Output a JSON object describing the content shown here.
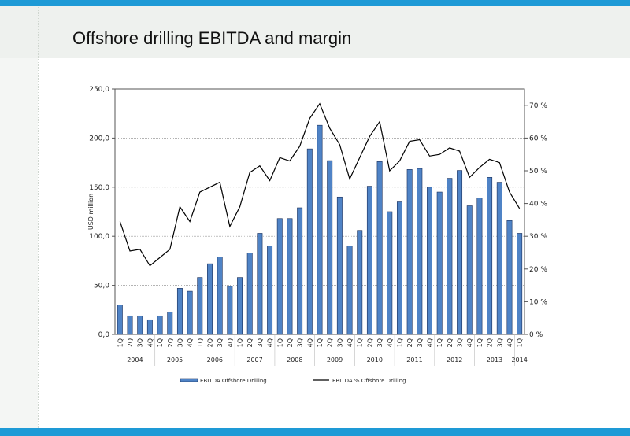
{
  "slide": {
    "title": "Offshore drilling EBITDA and margin",
    "colors": {
      "accent_band": "#1e9ad6",
      "bar_fill": "#4f83c6",
      "bar_stroke": "#1a2f5a",
      "line": "#000000"
    }
  },
  "chart_data": {
    "type": "bar",
    "categories": [
      "1Q",
      "2Q",
      "3Q",
      "4Q",
      "1Q",
      "2Q",
      "3Q",
      "4Q",
      "1Q",
      "2Q",
      "3Q",
      "4Q",
      "1Q",
      "2Q",
      "3Q",
      "4Q",
      "1Q",
      "2Q",
      "3Q",
      "4Q",
      "1Q",
      "2Q",
      "3Q",
      "4Q",
      "1Q",
      "2Q",
      "3Q",
      "4Q",
      "1Q",
      "2Q",
      "3Q",
      "4Q",
      "1Q",
      "2Q",
      "3Q",
      "4Q",
      "1Q",
      "2Q",
      "3Q",
      "4Q",
      "1Q"
    ],
    "years": [
      {
        "label": "2004",
        "start": 0,
        "count": 4
      },
      {
        "label": "2005",
        "start": 4,
        "count": 4
      },
      {
        "label": "2006",
        "start": 8,
        "count": 4
      },
      {
        "label": "2007",
        "start": 12,
        "count": 4
      },
      {
        "label": "2008",
        "start": 16,
        "count": 4
      },
      {
        "label": "2009",
        "start": 20,
        "count": 4
      },
      {
        "label": "2010",
        "start": 24,
        "count": 4
      },
      {
        "label": "2011",
        "start": 28,
        "count": 4
      },
      {
        "label": "2012",
        "start": 32,
        "count": 4
      },
      {
        "label": "2013",
        "start": 36,
        "count": 4
      },
      {
        "label": "2014",
        "start": 40,
        "count": 1
      }
    ],
    "series": [
      {
        "name": "EBITDA Offshore Drilling",
        "kind": "bar",
        "axis": "left",
        "values": [
          30,
          19,
          19,
          15,
          19,
          23,
          47,
          44,
          58,
          72,
          79,
          49,
          58,
          83,
          103,
          90,
          118,
          118,
          129,
          189,
          213,
          177,
          140,
          90,
          106,
          151,
          176,
          125,
          135,
          168,
          169,
          150,
          145,
          159,
          167,
          131,
          139,
          160,
          155,
          116,
          103
        ]
      },
      {
        "name": "EBITDA % Offshore Drilling",
        "kind": "line",
        "axis": "right",
        "values": [
          34.5,
          25.5,
          26,
          21,
          23.5,
          26,
          39,
          34.5,
          43.5,
          45,
          46.5,
          33,
          39,
          49.5,
          51.5,
          47,
          54,
          53,
          57.5,
          66,
          70.5,
          63,
          58,
          47.5,
          54,
          60.5,
          65,
          50,
          53,
          59,
          59.5,
          54.5,
          55,
          57,
          56,
          48,
          51,
          53.5,
          52.5,
          43.5,
          38.5
        ]
      }
    ],
    "ylabel": "USD million",
    "ylim": [
      0,
      250
    ],
    "yticks": [
      "0,0",
      "50,0",
      "100,0",
      "150,0",
      "200,0",
      "250,0"
    ],
    "y2lim": [
      0,
      75
    ],
    "y2ticks": [
      "0 %",
      "10 %",
      "20 %",
      "30 %",
      "40 %",
      "50 %",
      "60 %",
      "70 %"
    ],
    "grid": true,
    "legend_position": "bottom"
  }
}
